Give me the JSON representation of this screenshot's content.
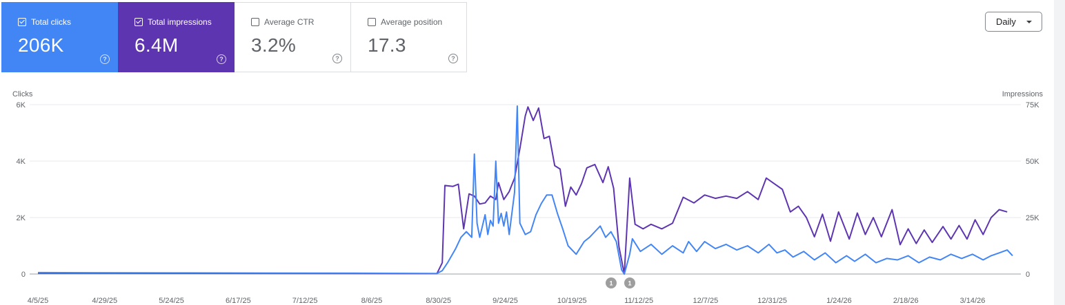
{
  "cards": [
    {
      "label": "Total clicks",
      "value": "206K",
      "checked": true
    },
    {
      "label": "Total impressions",
      "value": "6.4M",
      "checked": true
    },
    {
      "label": "Average CTR",
      "value": "3.2%",
      "checked": false
    },
    {
      "label": "Average position",
      "value": "17.3",
      "checked": false
    }
  ],
  "period_select": {
    "label": "Daily"
  },
  "colors": {
    "clicks": "#4285f4",
    "impressions": "#5e35b1",
    "grid": "#e8eaed"
  },
  "chart_data": {
    "type": "line",
    "left_axis": {
      "label": "Clicks",
      "ticks": [
        "0",
        "2K",
        "4K",
        "6K"
      ],
      "range": [
        0,
        6000
      ]
    },
    "right_axis": {
      "label": "Impressions",
      "ticks": [
        "0",
        "25K",
        "50K",
        "75K"
      ],
      "range": [
        0,
        75000
      ]
    },
    "x_ticks": [
      "4/5/25",
      "4/29/25",
      "5/24/25",
      "6/17/25",
      "7/12/25",
      "8/6/25",
      "8/30/25",
      "9/24/25",
      "10/19/25",
      "11/12/25",
      "12/7/25",
      "12/31/25",
      "1/24/26",
      "2/18/26",
      "3/14/26"
    ],
    "annotations": [
      {
        "label": "1",
        "date": "2025-11-08"
      },
      {
        "label": "1",
        "date": "2025-11-11"
      }
    ],
    "series": [
      {
        "name": "Total clicks",
        "axis": "left",
        "points": [
          [
            "2025-04-05",
            50
          ],
          [
            "2025-06-01",
            40
          ],
          [
            "2025-08-01",
            30
          ],
          [
            "2025-09-01",
            20
          ],
          [
            "2025-09-03",
            120
          ],
          [
            "2025-09-05",
            400
          ],
          [
            "2025-09-08",
            900
          ],
          [
            "2025-09-10",
            1300
          ],
          [
            "2025-09-12",
            1500
          ],
          [
            "2025-09-14",
            1300
          ],
          [
            "2025-09-15",
            4250
          ],
          [
            "2025-09-16",
            1800
          ],
          [
            "2025-09-17",
            1300
          ],
          [
            "2025-09-19",
            2100
          ],
          [
            "2025-09-20",
            1400
          ],
          [
            "2025-09-21",
            1900
          ],
          [
            "2025-09-22",
            1700
          ],
          [
            "2025-09-23",
            4000
          ],
          [
            "2025-09-24",
            1800
          ],
          [
            "2025-09-25",
            2150
          ],
          [
            "2025-09-26",
            1700
          ],
          [
            "2025-09-27",
            2200
          ],
          [
            "2025-09-28",
            1400
          ],
          [
            "2025-09-30",
            2900
          ],
          [
            "2025-10-01",
            5950
          ],
          [
            "2025-10-02",
            1800
          ],
          [
            "2025-10-04",
            1400
          ],
          [
            "2025-10-06",
            1500
          ],
          [
            "2025-10-08",
            2100
          ],
          [
            "2025-10-10",
            2500
          ],
          [
            "2025-10-12",
            2800
          ],
          [
            "2025-10-14",
            2800
          ],
          [
            "2025-10-16",
            2150
          ],
          [
            "2025-10-18",
            1600
          ],
          [
            "2025-10-20",
            1000
          ],
          [
            "2025-10-23",
            700
          ],
          [
            "2025-10-26",
            1150
          ],
          [
            "2025-10-28",
            1300
          ],
          [
            "2025-10-30",
            1500
          ],
          [
            "2025-11-01",
            1700
          ],
          [
            "2025-11-03",
            1300
          ],
          [
            "2025-11-05",
            1500
          ],
          [
            "2025-11-07",
            1150
          ],
          [
            "2025-11-09",
            150
          ],
          [
            "2025-11-10",
            0
          ],
          [
            "2025-11-12",
            700
          ],
          [
            "2025-11-13",
            1250
          ],
          [
            "2025-11-16",
            800
          ],
          [
            "2025-11-20",
            1050
          ],
          [
            "2025-11-24",
            700
          ],
          [
            "2025-11-28",
            1000
          ],
          [
            "2025-12-02",
            750
          ],
          [
            "2025-12-04",
            1150
          ],
          [
            "2025-12-07",
            800
          ],
          [
            "2025-12-10",
            1150
          ],
          [
            "2025-12-14",
            900
          ],
          [
            "2025-12-18",
            1050
          ],
          [
            "2025-12-22",
            850
          ],
          [
            "2025-12-26",
            1000
          ],
          [
            "2025-12-30",
            750
          ],
          [
            "2026-01-03",
            1050
          ],
          [
            "2026-01-06",
            750
          ],
          [
            "2026-01-09",
            850
          ],
          [
            "2026-01-12",
            600
          ],
          [
            "2026-01-16",
            800
          ],
          [
            "2026-01-20",
            500
          ],
          [
            "2026-01-24",
            750
          ],
          [
            "2026-01-28",
            400
          ],
          [
            "2026-02-01",
            650
          ],
          [
            "2026-02-04",
            450
          ],
          [
            "2026-02-08",
            700
          ],
          [
            "2026-02-12",
            400
          ],
          [
            "2026-02-16",
            550
          ],
          [
            "2026-02-20",
            500
          ],
          [
            "2026-02-24",
            650
          ],
          [
            "2026-02-28",
            400
          ],
          [
            "2026-03-04",
            600
          ],
          [
            "2026-03-08",
            500
          ],
          [
            "2026-03-12",
            700
          ],
          [
            "2026-03-16",
            550
          ],
          [
            "2026-03-20",
            700
          ],
          [
            "2026-03-24",
            500
          ],
          [
            "2026-03-27",
            650
          ],
          [
            "2026-03-30",
            750
          ],
          [
            "2026-04-02",
            850
          ],
          [
            "2026-04-04",
            650
          ]
        ]
      },
      {
        "name": "Total impressions",
        "axis": "right",
        "points": [
          [
            "2025-04-05",
            400
          ],
          [
            "2025-06-01",
            300
          ],
          [
            "2025-08-01",
            200
          ],
          [
            "2025-09-01",
            150
          ],
          [
            "2025-09-03",
            5000
          ],
          [
            "2025-09-04",
            39200
          ],
          [
            "2025-09-07",
            38800
          ],
          [
            "2025-09-09",
            39800
          ],
          [
            "2025-09-10",
            30000
          ],
          [
            "2025-09-11",
            20000
          ],
          [
            "2025-09-13",
            35500
          ],
          [
            "2025-09-15",
            34500
          ],
          [
            "2025-09-17",
            31000
          ],
          [
            "2025-09-19",
            31500
          ],
          [
            "2025-09-21",
            34500
          ],
          [
            "2025-09-23",
            33000
          ],
          [
            "2025-09-24",
            40500
          ],
          [
            "2025-09-26",
            33000
          ],
          [
            "2025-09-28",
            36500
          ],
          [
            "2025-09-30",
            42500
          ],
          [
            "2025-10-02",
            55500
          ],
          [
            "2025-10-04",
            70000
          ],
          [
            "2025-10-05",
            74000
          ],
          [
            "2025-10-07",
            68000
          ],
          [
            "2025-10-09",
            73500
          ],
          [
            "2025-10-11",
            60000
          ],
          [
            "2025-10-13",
            61000
          ],
          [
            "2025-10-15",
            48000
          ],
          [
            "2025-10-17",
            46500
          ],
          [
            "2025-10-19",
            30000
          ],
          [
            "2025-10-21",
            38500
          ],
          [
            "2025-10-23",
            35000
          ],
          [
            "2025-10-25",
            40000
          ],
          [
            "2025-10-27",
            47000
          ],
          [
            "2025-10-30",
            48500
          ],
          [
            "2025-11-02",
            40500
          ],
          [
            "2025-11-04",
            47500
          ],
          [
            "2025-11-06",
            38000
          ],
          [
            "2025-11-08",
            12000
          ],
          [
            "2025-11-10",
            0
          ],
          [
            "2025-11-12",
            42500
          ],
          [
            "2025-11-14",
            22000
          ],
          [
            "2025-11-17",
            20000
          ],
          [
            "2025-11-20",
            22000
          ],
          [
            "2025-11-24",
            20000
          ],
          [
            "2025-11-28",
            22500
          ],
          [
            "2025-12-02",
            34000
          ],
          [
            "2025-12-06",
            31500
          ],
          [
            "2025-12-10",
            35000
          ],
          [
            "2025-12-14",
            33500
          ],
          [
            "2025-12-18",
            34500
          ],
          [
            "2025-12-22",
            33500
          ],
          [
            "2025-12-26",
            36500
          ],
          [
            "2025-12-30",
            33000
          ],
          [
            "2026-01-02",
            42500
          ],
          [
            "2026-01-05",
            40000
          ],
          [
            "2026-01-08",
            37500
          ],
          [
            "2026-01-11",
            27500
          ],
          [
            "2026-01-14",
            30000
          ],
          [
            "2026-01-17",
            25000
          ],
          [
            "2026-01-20",
            16500
          ],
          [
            "2026-01-23",
            26500
          ],
          [
            "2026-01-26",
            14500
          ],
          [
            "2026-01-29",
            27500
          ],
          [
            "2026-02-02",
            15500
          ],
          [
            "2026-02-05",
            27000
          ],
          [
            "2026-02-08",
            17500
          ],
          [
            "2026-02-11",
            25000
          ],
          [
            "2026-02-14",
            16500
          ],
          [
            "2026-02-18",
            28500
          ],
          [
            "2026-02-21",
            13000
          ],
          [
            "2026-02-24",
            20000
          ],
          [
            "2026-02-27",
            13500
          ],
          [
            "2026-03-02",
            19500
          ],
          [
            "2026-03-05",
            14000
          ],
          [
            "2026-03-09",
            21000
          ],
          [
            "2026-03-12",
            15500
          ],
          [
            "2026-03-15",
            21500
          ],
          [
            "2026-03-18",
            15500
          ],
          [
            "2026-03-21",
            24000
          ],
          [
            "2026-03-24",
            17500
          ],
          [
            "2026-03-27",
            25000
          ],
          [
            "2026-03-30",
            28500
          ],
          [
            "2026-04-02",
            27500
          ]
        ]
      }
    ]
  }
}
